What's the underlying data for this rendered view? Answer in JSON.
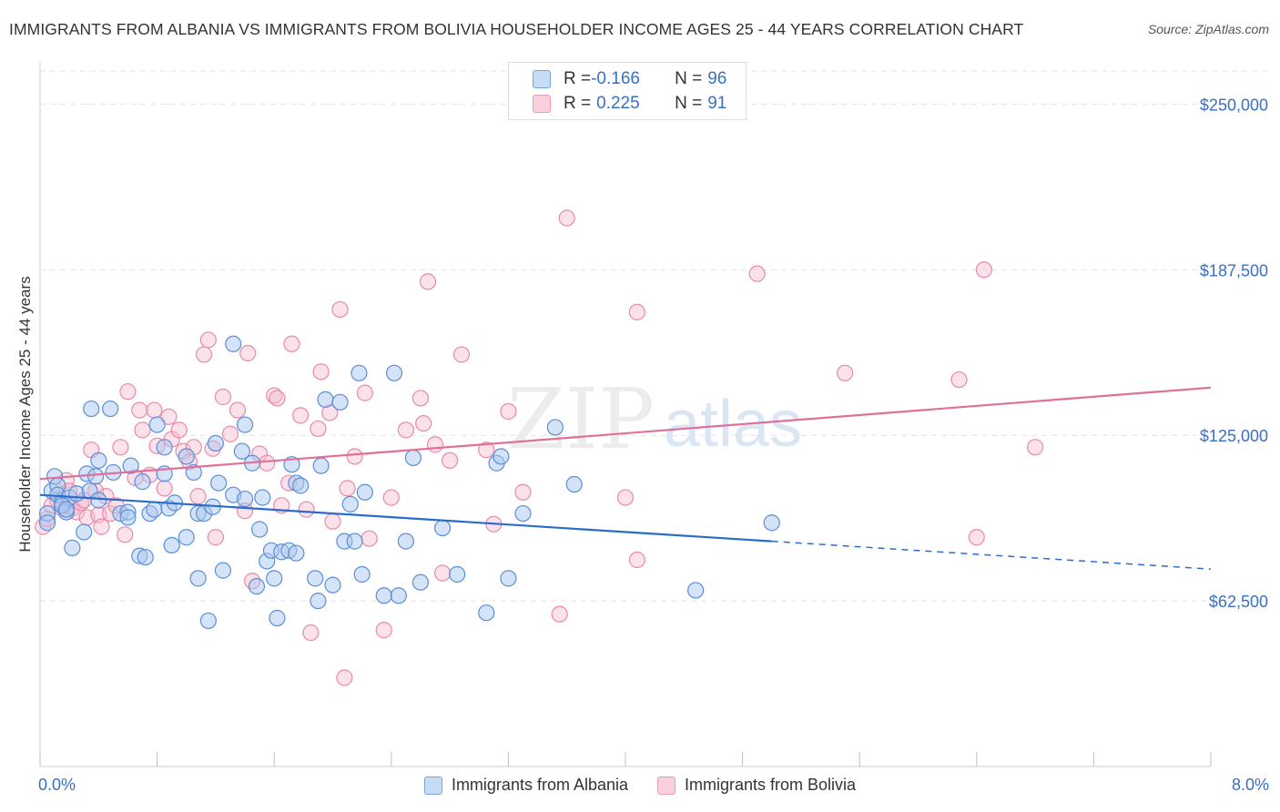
{
  "title": "IMMIGRANTS FROM ALBANIA VS IMMIGRANTS FROM BOLIVIA HOUSEHOLDER INCOME AGES 25 - 44 YEARS CORRELATION CHART",
  "source": "Source: ZipAtlas.com",
  "watermark": {
    "zip": "ZIP",
    "atlas": "atlas"
  },
  "legend": {
    "albania": {
      "r_label": "R = ",
      "r_value": "-0.166",
      "n_label": "N = ",
      "n_value": "96"
    },
    "bolivia": {
      "r_label": "R = ",
      "r_value": "0.225",
      "n_label": "N = ",
      "n_value": "91"
    }
  },
  "bottom_legend": {
    "albania": "Immigrants from Albania",
    "bolivia": "Immigrants from Bolivia"
  },
  "x_axis_labels": {
    "left": "0.0%",
    "right": "8.0%"
  },
  "colors": {
    "albania_fill": "#aac8f0",
    "albania_stroke": "#5b8fd6",
    "albania_line": "#2a6cc9",
    "bolivia_fill": "#f5bcd0",
    "bolivia_stroke": "#e88aa9",
    "bolivia_line": "#e0709a",
    "tick_label": "#3a70c4",
    "grid": "#e3e3e3"
  },
  "chart_data": {
    "type": "scatter",
    "title": "IMMIGRANTS FROM ALBANIA VS IMMIGRANTS FROM BOLIVIA HOUSEHOLDER INCOME AGES 25 - 44 YEARS CORRELATION CHART",
    "ylabel": "Householder Income Ages 25 - 44 years",
    "xlim": [
      0,
      8
    ],
    "ylim": [
      0,
      262500
    ],
    "y_ticks": [
      {
        "value": 62500,
        "label": "$62,500"
      },
      {
        "value": 125000,
        "label": "$125,000"
      },
      {
        "value": 187500,
        "label": "$187,500"
      },
      {
        "value": 250000,
        "label": "$250,000"
      }
    ],
    "grid": true,
    "series": [
      {
        "name": "Immigrants from Albania",
        "trend": {
          "x0": 0,
          "y0": 102500,
          "x1": 5.0,
          "y1": 85000,
          "dash_to_x": 8.0,
          "dash_to_y": 74500
        },
        "points": [
          [
            0.05,
            95500
          ],
          [
            0.08,
            104000
          ],
          [
            0.1,
            109500
          ],
          [
            0.12,
            106000
          ],
          [
            0.12,
            102500
          ],
          [
            0.15,
            99500
          ],
          [
            0.18,
            96000
          ],
          [
            0.2,
            101500
          ],
          [
            0.22,
            82500
          ],
          [
            0.25,
            103000
          ],
          [
            0.3,
            88500
          ],
          [
            0.32,
            110500
          ],
          [
            0.34,
            104000
          ],
          [
            0.35,
            135000
          ],
          [
            0.38,
            109500
          ],
          [
            0.4,
            115500
          ],
          [
            0.48,
            135000
          ],
          [
            0.5,
            111000
          ],
          [
            0.55,
            95500
          ],
          [
            0.6,
            96000
          ],
          [
            0.62,
            113500
          ],
          [
            0.68,
            79500
          ],
          [
            0.7,
            107500
          ],
          [
            0.72,
            79000
          ],
          [
            0.75,
            95500
          ],
          [
            0.78,
            97000
          ],
          [
            0.8,
            129000
          ],
          [
            0.85,
            110500
          ],
          [
            0.85,
            120500
          ],
          [
            0.88,
            97500
          ],
          [
            0.9,
            83500
          ],
          [
            0.92,
            99500
          ],
          [
            1.0,
            117000
          ],
          [
            1.0,
            86500
          ],
          [
            1.05,
            111000
          ],
          [
            1.08,
            95500
          ],
          [
            1.08,
            71000
          ],
          [
            1.12,
            95500
          ],
          [
            1.15,
            55000
          ],
          [
            1.18,
            98000
          ],
          [
            1.2,
            122000
          ],
          [
            1.22,
            107000
          ],
          [
            1.25,
            74000
          ],
          [
            1.32,
            159500
          ],
          [
            1.32,
            102500
          ],
          [
            1.38,
            119000
          ],
          [
            1.4,
            129000
          ],
          [
            1.4,
            101000
          ],
          [
            1.45,
            114500
          ],
          [
            1.48,
            68000
          ],
          [
            1.5,
            89500
          ],
          [
            1.52,
            101500
          ],
          [
            1.55,
            77500
          ],
          [
            1.58,
            81500
          ],
          [
            1.6,
            71000
          ],
          [
            1.62,
            56000
          ],
          [
            1.65,
            81000
          ],
          [
            1.7,
            81500
          ],
          [
            1.72,
            114000
          ],
          [
            1.75,
            80500
          ],
          [
            1.75,
            107000
          ],
          [
            1.78,
            106000
          ],
          [
            1.88,
            71000
          ],
          [
            1.9,
            62500
          ],
          [
            1.92,
            113500
          ],
          [
            1.95,
            138500
          ],
          [
            2.0,
            68500
          ],
          [
            2.05,
            137500
          ],
          [
            2.08,
            85000
          ],
          [
            2.12,
            99000
          ],
          [
            2.15,
            85000
          ],
          [
            2.18,
            148500
          ],
          [
            2.2,
            72500
          ],
          [
            2.22,
            103500
          ],
          [
            2.35,
            64500
          ],
          [
            2.42,
            148500
          ],
          [
            2.45,
            64500
          ],
          [
            2.5,
            85000
          ],
          [
            2.55,
            116500
          ],
          [
            2.6,
            69500
          ],
          [
            2.75,
            90000
          ],
          [
            2.85,
            72500
          ],
          [
            3.05,
            58000
          ],
          [
            3.12,
            114500
          ],
          [
            3.15,
            117000
          ],
          [
            3.2,
            71000
          ],
          [
            3.3,
            95500
          ],
          [
            3.52,
            128000
          ],
          [
            3.65,
            106500
          ],
          [
            4.48,
            66500
          ],
          [
            5.0,
            92000
          ],
          [
            0.05,
            92000
          ],
          [
            0.15,
            98500
          ],
          [
            0.18,
            97000
          ],
          [
            0.4,
            100500
          ],
          [
            0.6,
            94000
          ]
        ]
      },
      {
        "name": "Immigrants from Bolivia",
        "trend": {
          "x0": 0,
          "y0": 108500,
          "x1": 8.0,
          "y1": 143000
        },
        "points": [
          [
            0.02,
            90500
          ],
          [
            0.05,
            93500
          ],
          [
            0.08,
            98500
          ],
          [
            0.12,
            100500
          ],
          [
            0.15,
            97500
          ],
          [
            0.18,
            108000
          ],
          [
            0.2,
            104000
          ],
          [
            0.22,
            97500
          ],
          [
            0.25,
            96000
          ],
          [
            0.28,
            99500
          ],
          [
            0.3,
            100500
          ],
          [
            0.32,
            94000
          ],
          [
            0.35,
            119500
          ],
          [
            0.38,
            104000
          ],
          [
            0.4,
            95000
          ],
          [
            0.42,
            90500
          ],
          [
            0.45,
            102000
          ],
          [
            0.48,
            95500
          ],
          [
            0.52,
            98500
          ],
          [
            0.55,
            120500
          ],
          [
            0.58,
            87500
          ],
          [
            0.6,
            141500
          ],
          [
            0.65,
            109000
          ],
          [
            0.68,
            134500
          ],
          [
            0.7,
            127000
          ],
          [
            0.75,
            110000
          ],
          [
            0.78,
            134500
          ],
          [
            0.8,
            121000
          ],
          [
            0.85,
            105000
          ],
          [
            0.88,
            132000
          ],
          [
            0.9,
            123500
          ],
          [
            0.95,
            127000
          ],
          [
            0.98,
            119000
          ],
          [
            1.02,
            115000
          ],
          [
            1.05,
            120500
          ],
          [
            1.08,
            102000
          ],
          [
            1.12,
            155500
          ],
          [
            1.15,
            161000
          ],
          [
            1.18,
            120000
          ],
          [
            1.2,
            86500
          ],
          [
            1.25,
            139500
          ],
          [
            1.3,
            125500
          ],
          [
            1.35,
            134500
          ],
          [
            1.4,
            96500
          ],
          [
            1.42,
            156000
          ],
          [
            1.45,
            70000
          ],
          [
            1.5,
            118000
          ],
          [
            1.55,
            114500
          ],
          [
            1.6,
            140000
          ],
          [
            1.62,
            139000
          ],
          [
            1.65,
            98500
          ],
          [
            1.7,
            107000
          ],
          [
            1.72,
            159500
          ],
          [
            1.78,
            132500
          ],
          [
            1.82,
            97000
          ],
          [
            1.85,
            50500
          ],
          [
            1.9,
            127500
          ],
          [
            1.92,
            149000
          ],
          [
            1.98,
            133500
          ],
          [
            2.0,
            92500
          ],
          [
            2.05,
            172500
          ],
          [
            2.08,
            33500
          ],
          [
            2.1,
            105000
          ],
          [
            2.15,
            117000
          ],
          [
            2.22,
            141000
          ],
          [
            2.25,
            86000
          ],
          [
            2.35,
            51500
          ],
          [
            2.4,
            101500
          ],
          [
            2.5,
            127000
          ],
          [
            2.6,
            139000
          ],
          [
            2.62,
            129500
          ],
          [
            2.65,
            183000
          ],
          [
            2.7,
            121500
          ],
          [
            2.75,
            73000
          ],
          [
            2.8,
            115500
          ],
          [
            2.88,
            155500
          ],
          [
            3.05,
            119500
          ],
          [
            3.1,
            91500
          ],
          [
            3.2,
            134000
          ],
          [
            3.3,
            103500
          ],
          [
            3.55,
            57500
          ],
          [
            3.6,
            207000
          ],
          [
            4.0,
            101500
          ],
          [
            4.08,
            171500
          ],
          [
            4.08,
            78000
          ],
          [
            4.9,
            186000
          ],
          [
            5.5,
            148500
          ],
          [
            6.28,
            146000
          ],
          [
            6.4,
            86500
          ],
          [
            6.45,
            187500
          ],
          [
            6.8,
            120500
          ]
        ]
      }
    ]
  }
}
